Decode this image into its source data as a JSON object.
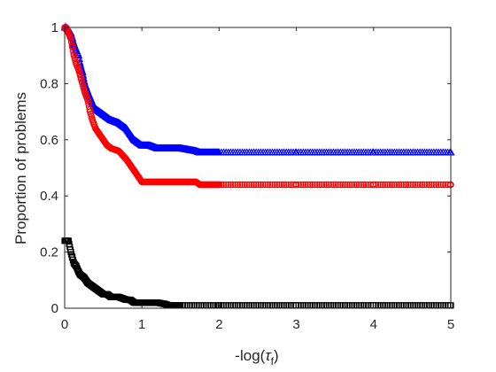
{
  "chart_data": {
    "type": "line",
    "title": "",
    "xlabel": "-log(τ_f)",
    "xlabel_main": "-log(",
    "xlabel_tau": "τ",
    "xlabel_sub": "f",
    "xlabel_close": ")",
    "ylabel": "Proportion of problems",
    "xlim": [
      0,
      5
    ],
    "ylim": [
      0,
      1
    ],
    "xticks": [
      "0",
      "1",
      "2",
      "3",
      "4",
      "5"
    ],
    "yticks": [
      "0",
      "0.2",
      "0.4",
      "0.6",
      "0.8",
      "1"
    ],
    "grid": false,
    "legend": "none",
    "series": [
      {
        "color": "#0000ff",
        "marker": "triangle",
        "x": [
          0,
          0.02,
          0.05,
          0.08,
          0.1,
          0.12,
          0.15,
          0.18,
          0.2,
          0.23,
          0.26,
          0.3,
          0.33,
          0.36,
          0.4,
          0.45,
          0.5,
          0.55,
          0.6,
          0.7,
          0.8,
          0.85,
          0.9,
          0.95,
          1.0,
          1.1,
          1.2,
          1.3,
          1.5,
          1.7,
          1.75,
          2.0,
          3.0,
          4.0,
          5.0
        ],
        "y": [
          1.0,
          1.0,
          0.99,
          0.98,
          0.96,
          0.94,
          0.92,
          0.9,
          0.87,
          0.84,
          0.8,
          0.77,
          0.75,
          0.73,
          0.71,
          0.7,
          0.69,
          0.68,
          0.67,
          0.66,
          0.64,
          0.62,
          0.6,
          0.59,
          0.58,
          0.58,
          0.57,
          0.57,
          0.57,
          0.56,
          0.555,
          0.555,
          0.555,
          0.555,
          0.555
        ]
      },
      {
        "color": "#ff0000",
        "marker": "circle",
        "x": [
          0,
          0.02,
          0.05,
          0.08,
          0.1,
          0.12,
          0.15,
          0.18,
          0.2,
          0.23,
          0.26,
          0.3,
          0.33,
          0.36,
          0.4,
          0.45,
          0.5,
          0.55,
          0.6,
          0.7,
          0.8,
          0.85,
          0.9,
          0.95,
          1.0,
          1.2,
          1.4,
          1.6,
          1.7,
          1.75,
          2.0,
          3.0,
          4.0,
          5.0
        ],
        "y": [
          1.0,
          1.0,
          0.98,
          0.96,
          0.93,
          0.9,
          0.87,
          0.85,
          0.83,
          0.8,
          0.77,
          0.74,
          0.7,
          0.67,
          0.64,
          0.62,
          0.6,
          0.58,
          0.57,
          0.56,
          0.53,
          0.51,
          0.49,
          0.47,
          0.45,
          0.45,
          0.45,
          0.45,
          0.45,
          0.44,
          0.44,
          0.44,
          0.44,
          0.44
        ]
      },
      {
        "color": "#000000",
        "marker": "square",
        "x": [
          0,
          0.05,
          0.08,
          0.1,
          0.12,
          0.15,
          0.18,
          0.2,
          0.25,
          0.3,
          0.35,
          0.4,
          0.45,
          0.5,
          0.55,
          0.6,
          0.7,
          0.8,
          0.85,
          0.9,
          1.0,
          1.1,
          1.2,
          1.3,
          1.35,
          1.5,
          2.0,
          3.0,
          4.0,
          5.0
        ],
        "y": [
          0.24,
          0.24,
          0.2,
          0.18,
          0.16,
          0.15,
          0.13,
          0.12,
          0.11,
          0.09,
          0.08,
          0.07,
          0.06,
          0.05,
          0.05,
          0.04,
          0.04,
          0.03,
          0.03,
          0.02,
          0.02,
          0.02,
          0.02,
          0.015,
          0.01,
          0.01,
          0.01,
          0.01,
          0.01,
          0.01
        ]
      }
    ]
  }
}
